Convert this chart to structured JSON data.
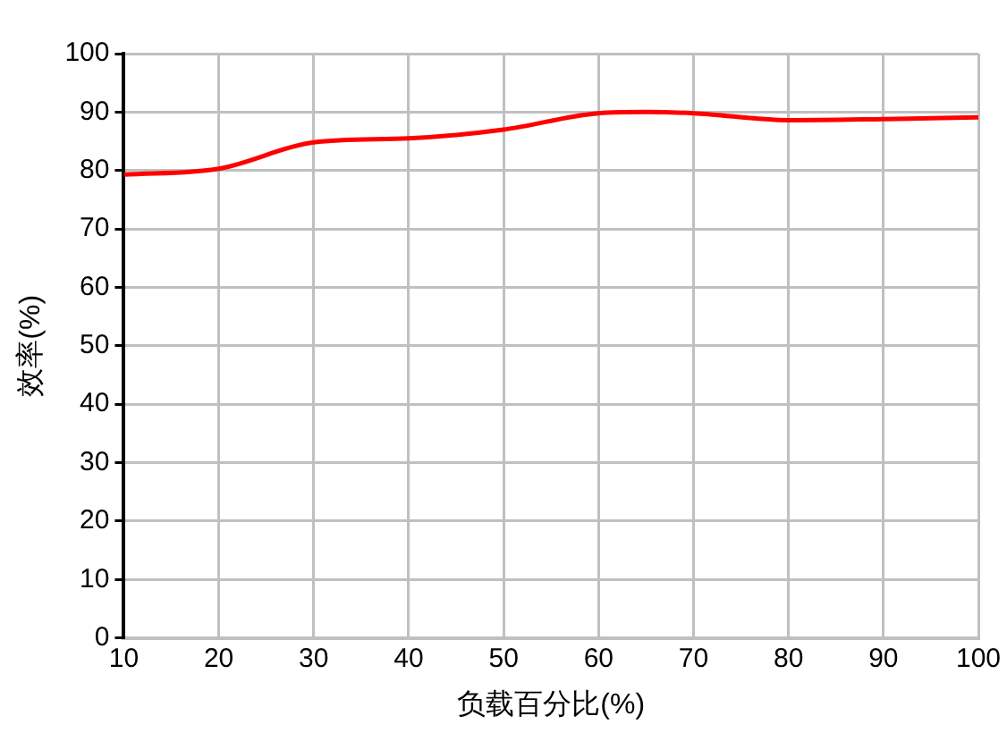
{
  "chart_data": {
    "type": "line",
    "xlabel": "负载百分比(%)",
    "ylabel": "效率(%)",
    "x": [
      10,
      20,
      30,
      40,
      50,
      60,
      65,
      70,
      80,
      90,
      100
    ],
    "series": [
      {
        "color": "#ff0000",
        "values": [
          79.3,
          80.3,
          84.8,
          85.5,
          87,
          89.8,
          90,
          89.8,
          88.6,
          88.8,
          89.1
        ]
      }
    ],
    "xlim": [
      10,
      100
    ],
    "xticks": [
      10,
      20,
      30,
      40,
      50,
      60,
      70,
      80,
      90,
      100
    ],
    "ylim": [
      0,
      100
    ],
    "yticks": [
      0,
      10,
      20,
      30,
      40,
      50,
      60,
      70,
      80,
      90,
      100
    ],
    "grid": true,
    "marker": "none",
    "line_style": "solid",
    "legend": false
  }
}
